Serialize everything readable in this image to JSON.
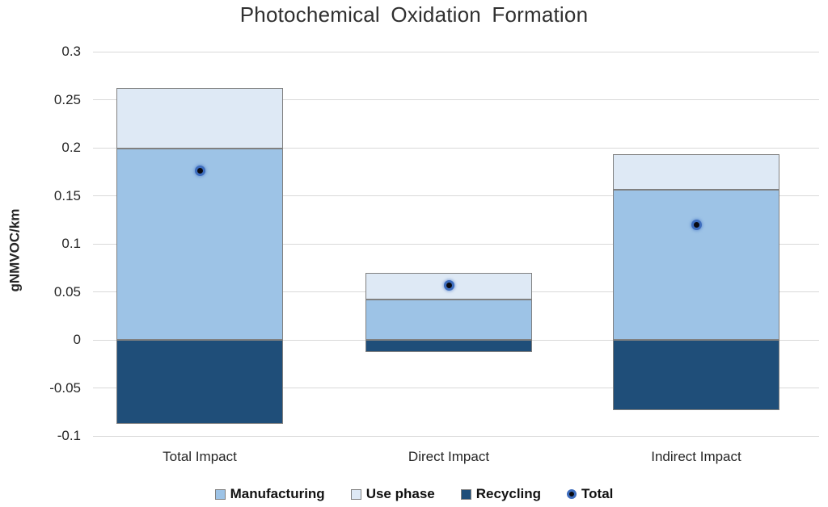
{
  "chart_data": {
    "type": "bar",
    "stacked": true,
    "title": "Photochemical Oxidation Formation",
    "ylabel": "gNMVOC/km",
    "categories": [
      "Total Impact",
      "Direct Impact",
      "Indirect Impact"
    ],
    "series": [
      {
        "name": "Manufacturing",
        "color": "#9DC3E6",
        "values": [
          0.199,
          0.042,
          0.156
        ]
      },
      {
        "name": "Use phase",
        "color": "#DEE9F5",
        "values": [
          0.063,
          0.028,
          0.037
        ]
      },
      {
        "name": "Recycling",
        "color": "#1F4E79",
        "values": [
          -0.087,
          -0.013,
          -0.073
        ]
      }
    ],
    "point_series": {
      "name": "Total",
      "marker": "circle",
      "color": "#0A0A10",
      "ring_color": "#3E6DBD",
      "values": [
        0.176,
        0.057,
        0.12
      ]
    },
    "ylim": [
      -0.1,
      0.3
    ],
    "yticks": [
      {
        "value": 0.3,
        "label": "0.3"
      },
      {
        "value": 0.25,
        "label": "0.25"
      },
      {
        "value": 0.2,
        "label": "0.2"
      },
      {
        "value": 0.15,
        "label": "0.15"
      },
      {
        "value": 0.1,
        "label": "0.1"
      },
      {
        "value": 0.05,
        "label": "0.05"
      },
      {
        "value": 0,
        "label": "0"
      },
      {
        "value": -0.05,
        "label": "-0.05"
      },
      {
        "value": -0.1,
        "label": "-0.1"
      }
    ],
    "grid": true,
    "legend_position": "bottom",
    "colors": {
      "gridline": "#D9D9D9",
      "bar_border": "#808080",
      "text": "#262626"
    }
  }
}
